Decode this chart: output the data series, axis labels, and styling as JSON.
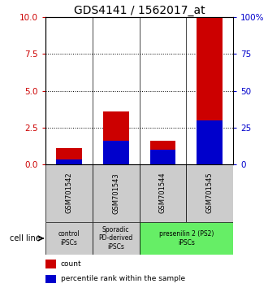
{
  "title": "GDS4141 / 1562017_at",
  "samples": [
    "GSM701542",
    "GSM701543",
    "GSM701544",
    "GSM701545"
  ],
  "count_values": [
    1.1,
    3.6,
    1.6,
    10.0
  ],
  "percentile_values": [
    3.0,
    16.0,
    10.0,
    30.0
  ],
  "ylim_left": [
    0,
    10
  ],
  "ylim_right": [
    0,
    100
  ],
  "yticks_left": [
    0,
    2.5,
    5,
    7.5,
    10
  ],
  "yticks_right": [
    0,
    25,
    50,
    75,
    100
  ],
  "ytick_labels_right": [
    "0",
    "25",
    "50",
    "75",
    "100%"
  ],
  "dotted_lines": [
    2.5,
    5,
    7.5
  ],
  "bar_color_red": "#cc0000",
  "bar_color_blue": "#0000cc",
  "bar_width": 0.55,
  "groups": [
    {
      "label": "control\niPSCs",
      "samples_count": 1,
      "color": "#cccccc"
    },
    {
      "label": "Sporadic\nPD-derived\niPSCs",
      "samples_count": 1,
      "color": "#cccccc"
    },
    {
      "label": "presenilin 2 (PS2)\niPSCs",
      "samples_count": 2,
      "color": "#66ee66"
    }
  ],
  "cell_line_label": "cell line",
  "legend_count_label": "count",
  "legend_percentile_label": "percentile rank within the sample",
  "left_tick_color": "#cc0000",
  "right_tick_color": "#0000cc",
  "title_fontsize": 10,
  "tick_fontsize": 7.5,
  "sample_fontsize": 6,
  "group_fontsize": 5.5,
  "legend_fontsize": 6.5
}
